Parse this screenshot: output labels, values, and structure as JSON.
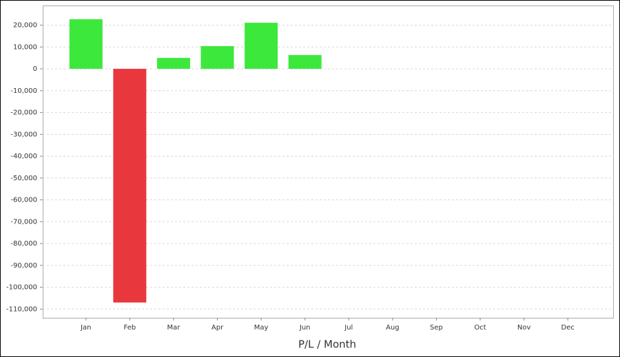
{
  "chart_data": {
    "type": "bar",
    "title": "P/L / Month",
    "categories": [
      "Jan",
      "Feb",
      "Mar",
      "Apr",
      "May",
      "Jun",
      "Jul",
      "Aug",
      "Sep",
      "Oct",
      "Nov",
      "Dec"
    ],
    "values": [
      22700,
      -107000,
      5000,
      10400,
      21100,
      6300,
      null,
      null,
      null,
      null,
      null,
      null
    ],
    "color_positive": "#3de83d",
    "color_negative": "#e8383d",
    "ylim": [
      -114000,
      29000
    ],
    "yticks": [
      {
        "value": 20000,
        "label": "20,000"
      },
      {
        "value": 10000,
        "label": "10,000"
      },
      0,
      {
        "value": -10000,
        "label": "-10,000"
      },
      {
        "value": -20000,
        "label": "-20,000"
      },
      {
        "value": -30000,
        "label": "-30,000"
      },
      {
        "value": -40000,
        "label": "-40,000"
      },
      {
        "value": -50000,
        "label": "-50,000"
      },
      {
        "value": -60000,
        "label": "-60,000"
      },
      {
        "value": -70000,
        "label": "-70,000"
      },
      {
        "value": -80000,
        "label": "-80,000"
      },
      {
        "value": -90000,
        "label": "-90,000"
      },
      {
        "value": -100000,
        "label": "-100,000"
      },
      {
        "value": -110000,
        "label": "-110,000"
      }
    ],
    "grid": true
  }
}
